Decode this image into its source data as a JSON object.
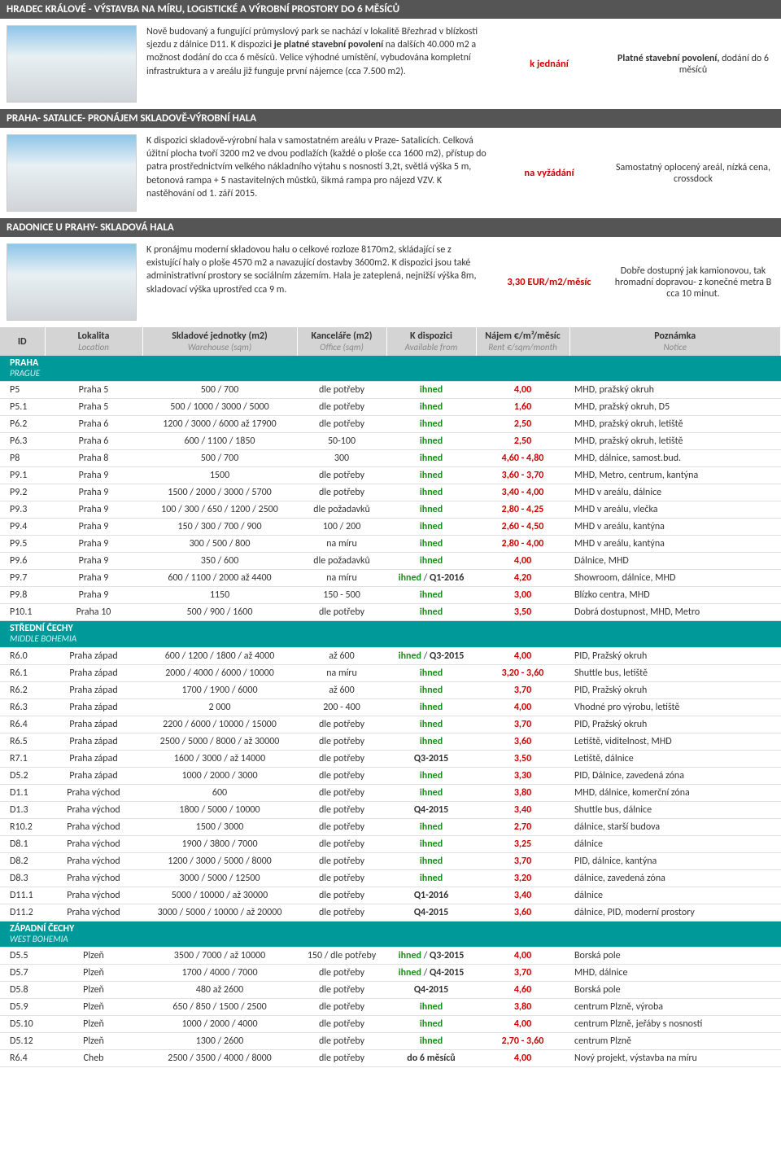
{
  "features": [
    {
      "title": "HRADEC KRÁLOVÉ - VÝSTAVBA NA MÍRU, LOGISTICKÉ A VÝROBNÍ PROSTORY DO 6 MĚSÍCŮ",
      "desc_html": "Nově budovaný a fungující průmyslový park se nachází v lokalitě Březhrad v blízkosti sjezdu z dálnice D11. K dispozici <b>je platné stavební povolení</b> na dalších 40.000 m2 a možnost dodání do cca 6 měsíců. Velice výhodné umístění, vybudována kompletní infrastruktura a v areálu již funguje první nájemce (cca 7.500 m2).",
      "price": "k jednání",
      "note_html": "<span class='bold'>Platné stavební povolení,</span> dodání do 6 měsíců"
    },
    {
      "title": "PRAHA- SATALICE- PRONÁJEM SKLADOVĚ-VÝROBNÍ HALA",
      "desc_html": "K dispozici skladově-výrobní hala v samostatném areálu v Praze- Satalicích. Celková úžitní plocha tvoří 3200 m2 ve dvou podlažích (každé o ploše cca 1600 m2), přístup do patra prostřednictvím velkého nákladního výtahu s nosností 3,2t, světlá výška 5 m, betonová rampa + 5 nastavitelných můstků, šikmá rampa pro nájezd VZV. K nastěhování od 1. září 2015.",
      "price": "na vyžádání",
      "note_html": "Samostatný oplocený areál, nízká cena, crossdock"
    },
    {
      "title": "RADONICE U PRAHY- SKLADOVÁ HALA",
      "desc_html": "K pronájmu moderní skladovou halu o celkové rozloze 8170m2, skládající se z existující haly o ploše 4570 m2 a navazující dostavby 3600m2. K dispozici jsou také administrativní prostory se sociálním zázemím. Hala je zateplená, nejnižší výška 8m, skladovací výška uprostřed cca 9 m.",
      "price": "3,30 EUR/m2/měsíc",
      "note_html": "Dobře dostupný jak kamionovou, tak hromadní dopravou- z konečné metra B cca 10 minut."
    }
  ],
  "table_headers": [
    {
      "main": "ID",
      "sub": ""
    },
    {
      "main": "Lokalita",
      "sub": "Location"
    },
    {
      "main": "Skladové jednotky (m2)",
      "sub": "Warehouse (sqm)"
    },
    {
      "main": "Kanceláře (m2)",
      "sub": "Office (sqm)"
    },
    {
      "main": "K dispozici",
      "sub": "Available from"
    },
    {
      "main": "Nájem €/m²/měsíc",
      "sub": "Rent €/sqm/month"
    },
    {
      "main": "Poznámka",
      "sub": "Notice"
    }
  ],
  "regions": [
    {
      "name": "PRAHA",
      "sub": "PRAGUE",
      "rows": [
        {
          "id": "P5",
          "loc": "Praha 5",
          "wh": "500 / 700",
          "off": "dle potřeby",
          "avail": "ihned",
          "avail_cls": "g",
          "rent": "4,00",
          "note": "MHD, pražský okruh"
        },
        {
          "id": "P5.1",
          "loc": "Praha 5",
          "wh": "500 / 1000 / 3000 / 5000",
          "off": "dle potřeby",
          "avail": "ihned",
          "avail_cls": "g",
          "rent": "1,60",
          "note": "MHD, pražský okruh, D5"
        },
        {
          "id": "P6.2",
          "loc": "Praha 6",
          "wh": "1200 / 3000 / 6000 až 17900",
          "off": "dle potřeby",
          "avail": "ihned",
          "avail_cls": "g",
          "rent": "2,50",
          "note": "MHD, pražský okruh, letiště"
        },
        {
          "id": "P6.3",
          "loc": "Praha 6",
          "wh": "600 / 1100 / 1850",
          "off": "50-100",
          "avail": "ihned",
          "avail_cls": "g",
          "rent": "2,50",
          "note": "MHD, pražský okruh, letiště"
        },
        {
          "id": "P8",
          "loc": "Praha 8",
          "wh": "500 / 700",
          "off": "300",
          "avail": "ihned",
          "avail_cls": "g",
          "rent": "4,60 - 4,80",
          "note": "MHD, dálnice, samost.bud."
        },
        {
          "id": "P9.1",
          "loc": "Praha 9",
          "wh": "1500",
          "off": "dle potřeby",
          "avail": "ihned",
          "avail_cls": "g",
          "rent": "3,60 - 3,70",
          "note": "MHD, Metro, centrum, kantýna"
        },
        {
          "id": "P9.2",
          "loc": "Praha 9",
          "wh": "1500 / 2000 / 3000 / 5700",
          "off": "dle potřeby",
          "avail": "ihned",
          "avail_cls": "g",
          "rent": "3,40 - 4,00",
          "note": "MHD v areálu, dálnice"
        },
        {
          "id": "P9.3",
          "loc": "Praha 9",
          "wh": "100 / 300 / 650 / 1200 / 2500",
          "off": "dle požadavků",
          "avail": "ihned",
          "avail_cls": "g",
          "rent": "2,80 - 4,25",
          "note": "MHD v areálu, vlečka"
        },
        {
          "id": "P9.4",
          "loc": "Praha 9",
          "wh": "150 / 300 / 700 / 900",
          "off": "100 / 200",
          "avail": "ihned",
          "avail_cls": "g",
          "rent": "2,60 - 4,50",
          "note": "MHD v areálu, kantýna"
        },
        {
          "id": "P9.5",
          "loc": "Praha 9",
          "wh": "300 / 500 / 800",
          "off": "na míru",
          "avail": "ihned",
          "avail_cls": "g",
          "rent": "2,80 - 4,00",
          "note": "MHD v areálu, kantýna"
        },
        {
          "id": "P9.6",
          "loc": "Praha 9",
          "wh": "350 / 600",
          "off": "dle požadavků",
          "avail": "ihned",
          "avail_cls": "g",
          "rent": "4,00",
          "note": "Dálnice, MHD"
        },
        {
          "id": "P9.7",
          "loc": "Praha 9",
          "wh": "600 / 1100 / 2000 až 4400",
          "off": "na míru",
          "avail": "ihned / Q1-2016",
          "avail_cls": "mix",
          "rent": "4,20",
          "note": "Showroom, dálnice, MHD"
        },
        {
          "id": "P9.8",
          "loc": "Praha 9",
          "wh": "1150",
          "off": "150 - 500",
          "avail": "ihned",
          "avail_cls": "g",
          "rent": "3,00",
          "note": "Blízko centra, MHD"
        },
        {
          "id": "P10.1",
          "loc": "Praha 10",
          "wh": "500 / 900 / 1600",
          "off": "dle potřeby",
          "avail": "ihned",
          "avail_cls": "g",
          "rent": "3,50",
          "note": "Dobrá dostupnost, MHD, Metro"
        }
      ]
    },
    {
      "name": "STŘEDNÍ ČECHY",
      "sub": "MIDDLE BOHEMIA",
      "rows": [
        {
          "id": "R6.0",
          "loc": "Praha západ",
          "wh": "600 / 1200 / 1800 / až 4000",
          "off": "až 600",
          "avail": "ihned / Q3-2015",
          "avail_cls": "mix",
          "rent": "4,00",
          "note": "PID, Pražský okruh"
        },
        {
          "id": "R6.1",
          "loc": "Praha západ",
          "wh": "2000 / 4000 / 6000 / 10000",
          "off": "na míru",
          "avail": "ihned",
          "avail_cls": "g",
          "rent": "3,20 - 3,60",
          "note": "Shuttle bus, letiště"
        },
        {
          "id": "R6.2",
          "loc": "Praha západ",
          "wh": "1700 / 1900 / 6000",
          "off": "až 600",
          "avail": "ihned",
          "avail_cls": "g",
          "rent": "3,70",
          "note": "PID, Pražský okruh"
        },
        {
          "id": "R6.3",
          "loc": "Praha západ",
          "wh": "2 000",
          "off": "200 - 400",
          "avail": "ihned",
          "avail_cls": "g",
          "rent": "4,00",
          "note": "Vhodné pro výrobu, letiště"
        },
        {
          "id": "R6.4",
          "loc": "Praha západ",
          "wh": "2200 / 6000 / 10000 / 15000",
          "off": "dle potřeby",
          "avail": "ihned",
          "avail_cls": "g",
          "rent": "3,70",
          "note": "PID, Pražský okruh"
        },
        {
          "id": "R6.5",
          "loc": "Praha západ",
          "wh": "2500 / 5000 / 8000 / až 30000",
          "off": "dle potřeby",
          "avail": "ihned",
          "avail_cls": "g",
          "rent": "3,60",
          "note": "Letiště, viditelnost, MHD"
        },
        {
          "id": "R7.1",
          "loc": "Praha západ",
          "wh": "1600 / 3000 / až 14000",
          "off": "dle potřeby",
          "avail": "Q3-2015",
          "avail_cls": "d",
          "rent": "3,50",
          "note": "Letiště, dálnice"
        },
        {
          "id": "D5.2",
          "loc": "Praha západ",
          "wh": "1000 / 2000 / 3000",
          "off": "dle potřeby",
          "avail": "ihned",
          "avail_cls": "g",
          "rent": "3,30",
          "note": "PID, Dálnice, zavedená zóna"
        },
        {
          "id": "D1.1",
          "loc": "Praha východ",
          "wh": "600",
          "off": "dle potřeby",
          "avail": "ihned",
          "avail_cls": "g",
          "rent": "3,80",
          "note": "MHD, dálnice, komerční zóna"
        },
        {
          "id": "D1.3",
          "loc": "Praha východ",
          "wh": "1800 / 5000 / 10000",
          "off": "dle potřeby",
          "avail": "Q4-2015",
          "avail_cls": "d",
          "rent": "3,40",
          "note": "Shuttle bus, dálnice"
        },
        {
          "id": "R10.2",
          "loc": "Praha východ",
          "wh": "1500 / 3000",
          "off": "dle potřeby",
          "avail": "ihned",
          "avail_cls": "g",
          "rent": "2,70",
          "note": "dálnice, starší budova"
        },
        {
          "id": "D8.1",
          "loc": "Praha východ",
          "wh": "1900 / 3800 / 7000",
          "off": "dle potřeby",
          "avail": "ihned",
          "avail_cls": "g",
          "rent": "3,25",
          "note": "dálnice"
        },
        {
          "id": "D8.2",
          "loc": "Praha východ",
          "wh": "1200 / 3000 / 5000 / 8000",
          "off": "dle potřeby",
          "avail": "ihned",
          "avail_cls": "g",
          "rent": "3,70",
          "note": "PID, dálnice, kantýna"
        },
        {
          "id": "D8.3",
          "loc": "Praha východ",
          "wh": "3000 / 5000 / 12500",
          "off": "dle potřeby",
          "avail": "ihned",
          "avail_cls": "g",
          "rent": "3,20",
          "note": "dálnice, zavedená zóna"
        },
        {
          "id": "D11.1",
          "loc": "Praha východ",
          "wh": "5000 / 10000 / až 30000",
          "off": "dle potřeby",
          "avail": "Q1-2016",
          "avail_cls": "d",
          "rent": "3,40",
          "note": "dálnice"
        },
        {
          "id": "D11.2",
          "loc": "Praha východ",
          "wh": "3000 / 5000 / 10000 / až 20000",
          "off": "dle potřeby",
          "avail": "Q4-2015",
          "avail_cls": "d",
          "rent": "3,60",
          "note": "dálnice, PID, moderní prostory"
        }
      ]
    },
    {
      "name": "ZÁPADNÍ ČECHY",
      "sub": "WEST BOHEMIA",
      "rows": [
        {
          "id": "D5.5",
          "loc": "Plzeň",
          "wh": "3500 / 7000 / až 10000",
          "off": "150 / dle potřeby",
          "avail": "ihned / Q3-2015",
          "avail_cls": "mix",
          "rent": "4,00",
          "note": "Borská pole"
        },
        {
          "id": "D5.7",
          "loc": "Plzeň",
          "wh": "1700 / 4000 / 7000",
          "off": "dle potřeby",
          "avail": "ihned / Q4-2015",
          "avail_cls": "mix",
          "rent": "3,70",
          "note": "MHD, dálnice"
        },
        {
          "id": "D5.8",
          "loc": "Plzeň",
          "wh": "480 až 2600",
          "off": "dle potřeby",
          "avail": "Q4-2015",
          "avail_cls": "d",
          "rent": "4,60",
          "note": "Borská pole"
        },
        {
          "id": "D5.9",
          "loc": "Plzeň",
          "wh": "650 / 850 / 1500 / 2500",
          "off": "dle potřeby",
          "avail": "ihned",
          "avail_cls": "g",
          "rent": "3,80",
          "note": "centrum Plzně, výroba"
        },
        {
          "id": "D5.10",
          "loc": "Plzeň",
          "wh": "1000 / 2000 / 4000",
          "off": "dle potřeby",
          "avail": "ihned",
          "avail_cls": "g",
          "rent": "4,00",
          "note": "centrum Plzně, jeřáby s nosností"
        },
        {
          "id": "D5.12",
          "loc": "Plzeň",
          "wh": "1300 / 2600",
          "off": "dle potřeby",
          "avail": "ihned",
          "avail_cls": "g",
          "rent": "2,70 - 3,60",
          "note": "centrum Plzně"
        },
        {
          "id": "R6.4",
          "loc": "Cheb",
          "wh": "2500 / 3500 / 4000 / 8000",
          "off": "dle potřeby",
          "avail": "do 6 měsíců",
          "avail_cls": "d",
          "rent": "4,00",
          "note": "Nový projekt, výstavba na míru"
        }
      ]
    }
  ],
  "colors": {
    "header_bg": "#555555",
    "region_bg": "#009999",
    "rent": "#c00000",
    "avail_green": "#1a8c1a"
  }
}
